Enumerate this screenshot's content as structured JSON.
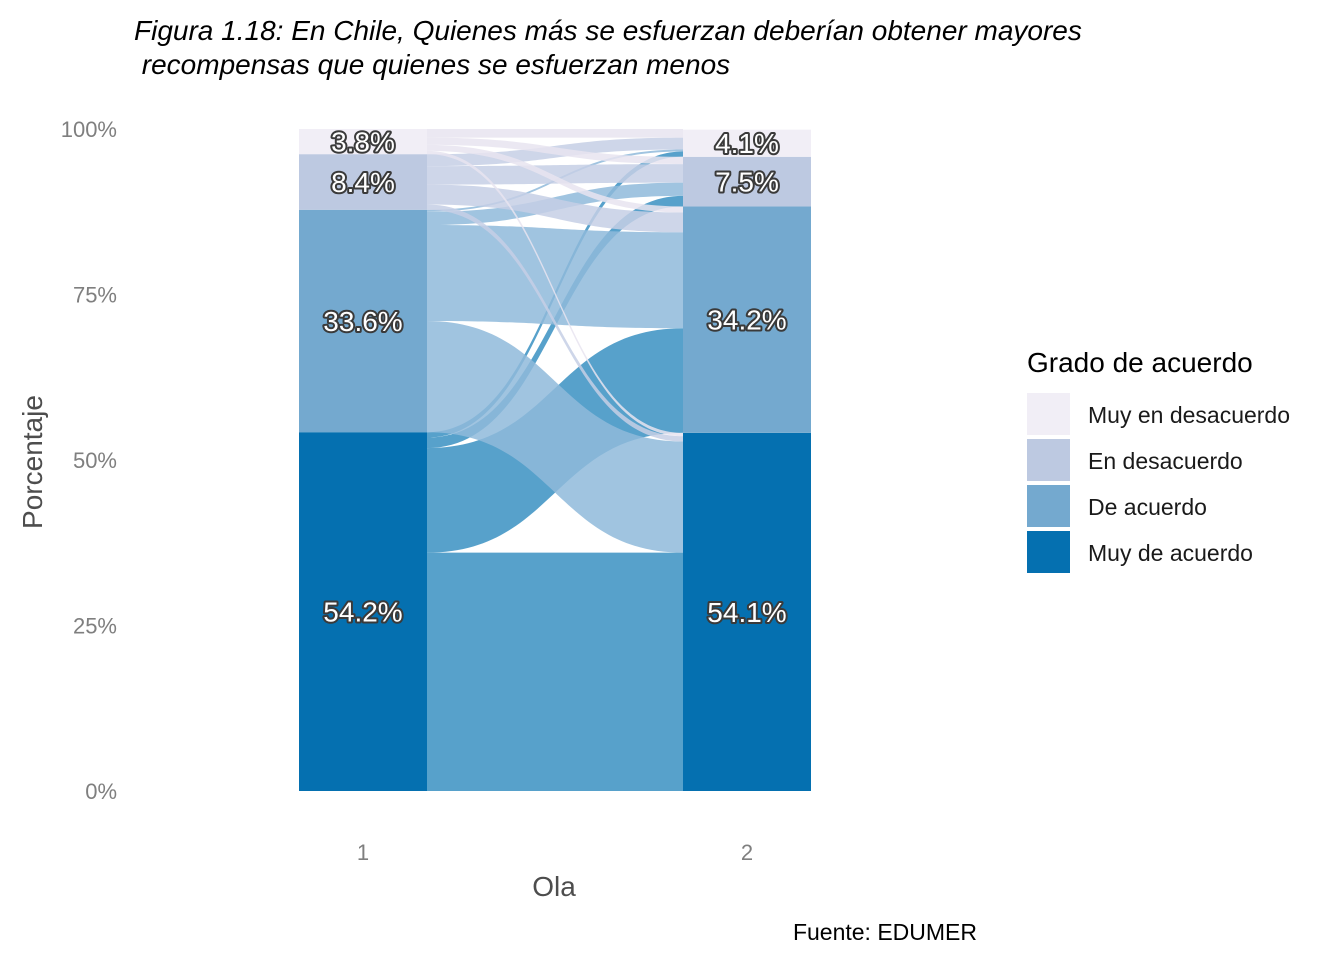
{
  "title_line1": "Figura 1.18: En Chile, Quienes más se esfuerzan deberían obtener mayores",
  "title_line2": " recompensas que quienes se esfuerzan menos",
  "caption": "Fuente: EDUMER",
  "chart_data": {
    "type": "alluvial",
    "xlabel": "Ola",
    "ylabel": "Porcentaje",
    "ylim": [
      0,
      100
    ],
    "yticks": [
      "0%",
      "25%",
      "50%",
      "75%",
      "100%"
    ],
    "categories": [
      "1",
      "2"
    ],
    "legend": {
      "title": "Grado de acuerdo",
      "position": "right",
      "entries": [
        {
          "name": "Muy en desacuerdo",
          "color": "#f1eef6"
        },
        {
          "name": "En desacuerdo",
          "color": "#bdc9e1"
        },
        {
          "name": "De acuerdo",
          "color": "#74a9cf"
        },
        {
          "name": "Muy de acuerdo",
          "color": "#0570b0"
        }
      ]
    },
    "stack_order_bottom_to_top": [
      "Muy de acuerdo",
      "De acuerdo",
      "En desacuerdo",
      "Muy en desacuerdo"
    ],
    "series": [
      {
        "name": "Muy de acuerdo",
        "values": [
          54.2,
          54.1
        ],
        "labels": [
          "54.2%",
          "54.1%"
        ]
      },
      {
        "name": "De acuerdo",
        "values": [
          33.6,
          34.2
        ],
        "labels": [
          "33.6%",
          "34.2%"
        ]
      },
      {
        "name": "En desacuerdo",
        "values": [
          8.4,
          7.5
        ],
        "labels": [
          "8.4%",
          "7.5%"
        ]
      },
      {
        "name": "Muy en desacuerdo",
        "values": [
          3.8,
          4.1
        ],
        "labels": [
          "3.8%",
          "4.1%"
        ]
      }
    ],
    "flows_wave1_to_wave2": [
      {
        "from": "Muy de acuerdo",
        "to": "Muy de acuerdo",
        "value": 36.0
      },
      {
        "from": "Muy de acuerdo",
        "to": "De acuerdo",
        "value": 15.8
      },
      {
        "from": "Muy de acuerdo",
        "to": "En desacuerdo",
        "value": 1.6
      },
      {
        "from": "Muy de acuerdo",
        "to": "Muy en desacuerdo",
        "value": 0.8
      },
      {
        "from": "De acuerdo",
        "to": "Muy de acuerdo",
        "value": 16.8
      },
      {
        "from": "De acuerdo",
        "to": "De acuerdo",
        "value": 14.5
      },
      {
        "from": "De acuerdo",
        "to": "En desacuerdo",
        "value": 2.0
      },
      {
        "from": "De acuerdo",
        "to": "Muy en desacuerdo",
        "value": 0.3
      },
      {
        "from": "En desacuerdo",
        "to": "Muy de acuerdo",
        "value": 0.8
      },
      {
        "from": "En desacuerdo",
        "to": "De acuerdo",
        "value": 3.0
      },
      {
        "from": "En desacuerdo",
        "to": "En desacuerdo",
        "value": 2.8
      },
      {
        "from": "En desacuerdo",
        "to": "Muy en desacuerdo",
        "value": 1.8
      },
      {
        "from": "Muy en desacuerdo",
        "to": "Muy de acuerdo",
        "value": 0.5
      },
      {
        "from": "Muy en desacuerdo",
        "to": "De acuerdo",
        "value": 0.9
      },
      {
        "from": "Muy en desacuerdo",
        "to": "En desacuerdo",
        "value": 1.1
      },
      {
        "from": "Muy en desacuerdo",
        "to": "Muy en desacuerdo",
        "value": 1.3
      }
    ]
  }
}
